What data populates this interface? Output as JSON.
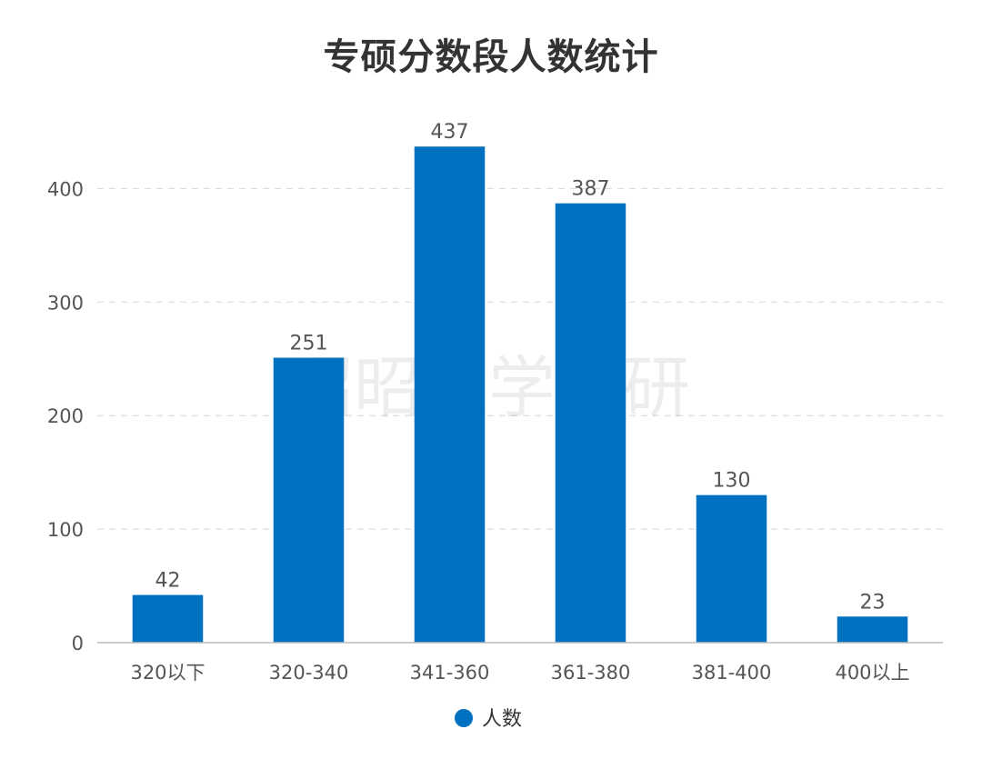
{
  "chart_data": {
    "type": "bar",
    "title": "专硕分数段人数统计",
    "categories": [
      "320以下",
      "320-340",
      "341-360",
      "361-380",
      "381-400",
      "400以上"
    ],
    "series": [
      {
        "name": "人数",
        "values": [
          42,
          251,
          437,
          387,
          130,
          23
        ],
        "color": "#0070c0"
      }
    ],
    "ylim": [
      0,
      450
    ],
    "yticks": [
      0,
      100,
      200,
      300,
      400
    ],
    "grid": true,
    "legend": "bottom-center",
    "watermark": "昭昭医学考研"
  }
}
